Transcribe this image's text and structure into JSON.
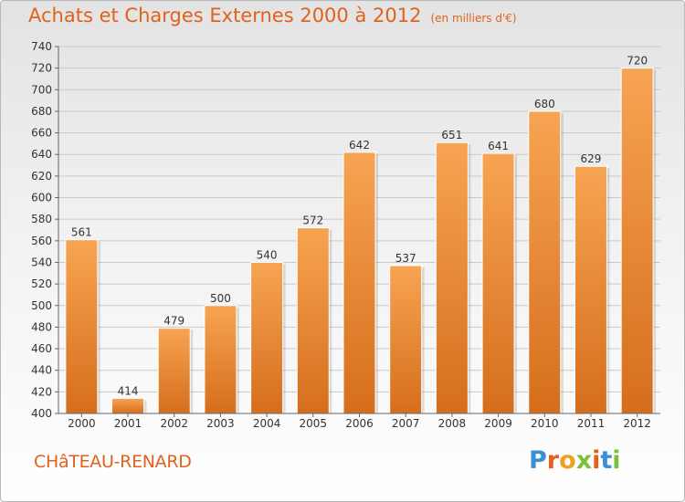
{
  "title": "Achats et Charges Externes 2000 à 2012",
  "subtitle": "(en milliers d'€)",
  "city": "CHâTEAU-RENARD",
  "logo": {
    "letters": [
      "P",
      "r",
      "o",
      "x",
      "i",
      "t",
      "i"
    ],
    "colors": [
      "#3a8fd6",
      "#e0621c",
      "#f0a020",
      "#7cbf3a",
      "#e0621c",
      "#3a8fd6",
      "#7cbf3a"
    ]
  },
  "colors": {
    "accent": "#e0621c",
    "bar_light": "#f7a452",
    "bar_dark": "#d56e1c"
  },
  "chart_data": {
    "type": "bar",
    "title": "Achats et Charges Externes 2000 à 2012",
    "subtitle": "(en milliers d'€)",
    "xlabel": "",
    "ylabel": "",
    "categories": [
      "2000",
      "2001",
      "2002",
      "2003",
      "2004",
      "2005",
      "2006",
      "2007",
      "2008",
      "2009",
      "2010",
      "2011",
      "2012"
    ],
    "values": [
      561,
      414,
      479,
      500,
      540,
      572,
      642,
      537,
      651,
      641,
      680,
      629,
      720
    ],
    "data_labels": [
      "561",
      "414",
      "479",
      "500",
      "540",
      "572",
      "642",
      "537",
      "651",
      "641",
      "680",
      "629",
      "720"
    ],
    "ylim": [
      400,
      740
    ],
    "yticks": [
      400,
      420,
      440,
      460,
      480,
      500,
      520,
      540,
      560,
      580,
      600,
      620,
      640,
      660,
      680,
      700,
      720,
      740
    ],
    "grid": true
  }
}
